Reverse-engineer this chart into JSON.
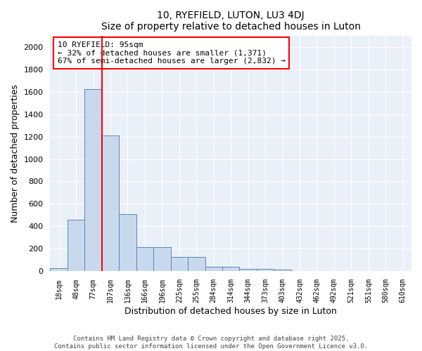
{
  "title1": "10, RYEFIELD, LUTON, LU3 4DJ",
  "title2": "Size of property relative to detached houses in Luton",
  "xlabel": "Distribution of detached houses by size in Luton",
  "ylabel": "Number of detached properties",
  "categories": [
    "18sqm",
    "48sqm",
    "77sqm",
    "107sqm",
    "136sqm",
    "166sqm",
    "196sqm",
    "225sqm",
    "255sqm",
    "284sqm",
    "314sqm",
    "344sqm",
    "373sqm",
    "403sqm",
    "432sqm",
    "462sqm",
    "492sqm",
    "521sqm",
    "551sqm",
    "580sqm",
    "610sqm"
  ],
  "values": [
    30,
    460,
    1620,
    1210,
    510,
    215,
    215,
    130,
    130,
    40,
    40,
    20,
    20,
    15,
    0,
    0,
    0,
    0,
    0,
    0,
    0
  ],
  "bar_color": "#c9d9ed",
  "bar_edge_color": "#5588bb",
  "vline_color": "red",
  "vline_x": 2.5,
  "annotation_text": "10 RYEFIELD: 95sqm\n← 32% of detached houses are smaller (1,371)\n67% of semi-detached houses are larger (2,832) →",
  "ylim": [
    0,
    2100
  ],
  "yticks": [
    0,
    200,
    400,
    600,
    800,
    1000,
    1200,
    1400,
    1600,
    1800,
    2000
  ],
  "bg_color": "#eaf0f8",
  "grid_color": "#ffffff",
  "footer1": "Contains HM Land Registry data © Crown copyright and database right 2025.",
  "footer2": "Contains public sector information licensed under the Open Government Licence v3.0."
}
